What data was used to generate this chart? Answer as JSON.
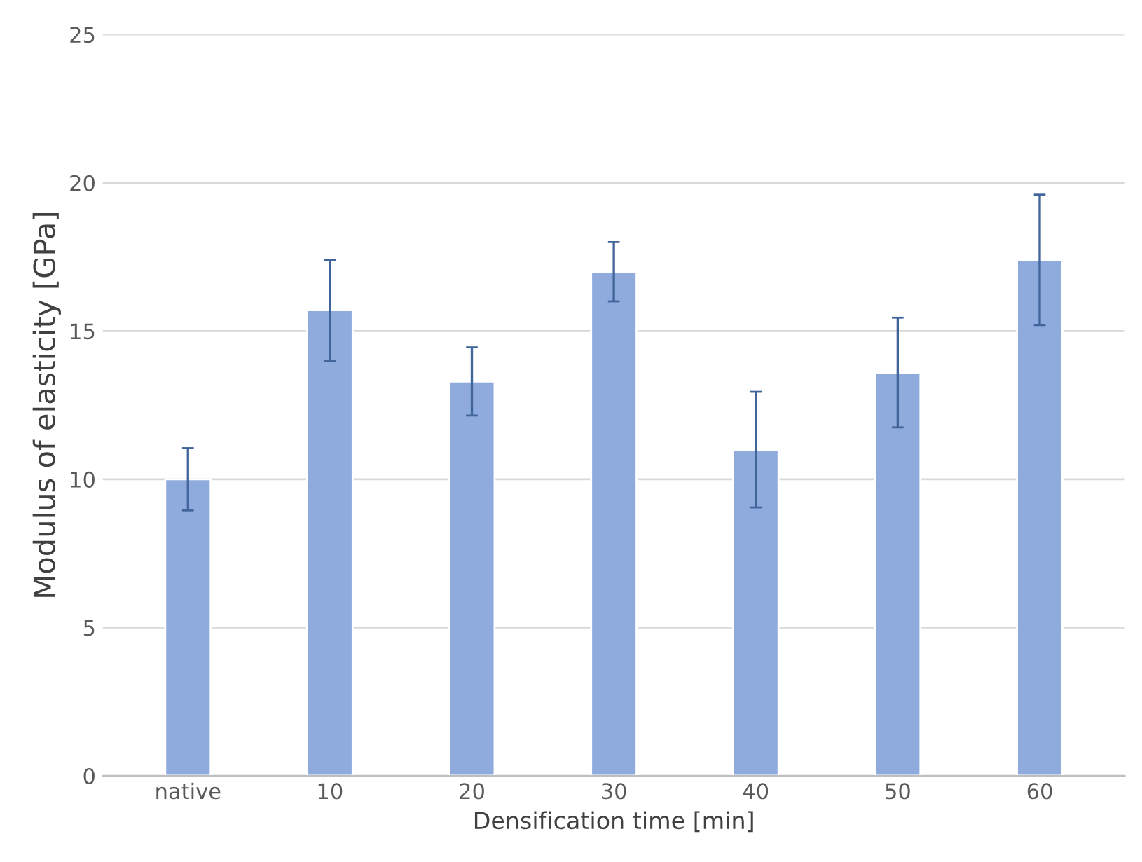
{
  "chart_data": {
    "type": "bar",
    "xlabel": "Densification time [min]",
    "ylabel": "Modulus of elasticity [GPa]",
    "categories": [
      "native",
      "10",
      "20",
      "30",
      "40",
      "50",
      "60"
    ],
    "values": [
      10.0,
      15.7,
      13.3,
      17.0,
      11.0,
      13.6,
      17.4
    ],
    "errors": [
      1.05,
      1.7,
      1.15,
      1.0,
      1.95,
      1.85,
      2.2
    ],
    "color": "#8faadc",
    "ylim": [
      0,
      25
    ],
    "yticks": [
      0,
      5,
      10,
      15,
      20,
      25
    ],
    "grid": "y"
  }
}
